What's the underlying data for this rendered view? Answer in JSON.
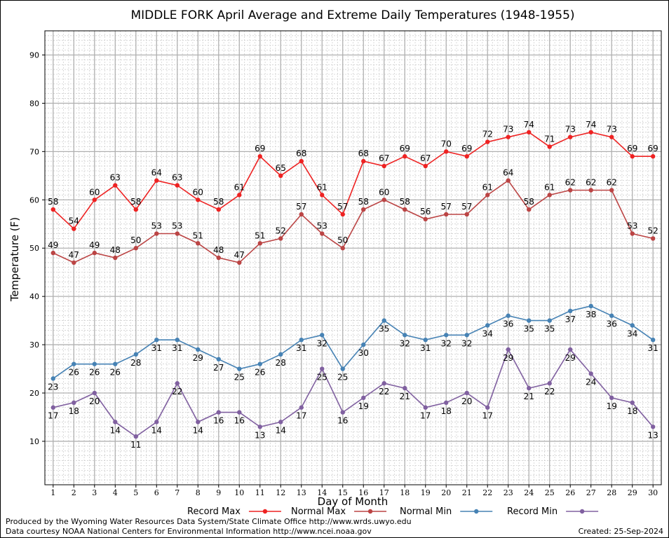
{
  "chart_data": {
    "type": "line",
    "title": "MIDDLE FORK April Average and Extreme Daily Temperatures (1948-1955)",
    "xlabel": "Day of Month",
    "ylabel": "Temperature (F)",
    "xlim": [
      0.6,
      30.4
    ],
    "ylim": [
      1,
      95
    ],
    "y_ticks": [
      10,
      20,
      30,
      40,
      50,
      60,
      70,
      80,
      90
    ],
    "x": [
      1,
      2,
      3,
      4,
      5,
      6,
      7,
      8,
      9,
      10,
      11,
      12,
      13,
      14,
      15,
      16,
      17,
      18,
      19,
      20,
      21,
      22,
      23,
      24,
      25,
      26,
      27,
      28,
      29,
      30
    ],
    "grid": true,
    "legend_placement": "bottom",
    "series": [
      {
        "name": "Record Max",
        "color": "#ee2222",
        "values": [
          58,
          54,
          60,
          63,
          58,
          64,
          63,
          60,
          58,
          61,
          69,
          65,
          68,
          61,
          57,
          68,
          67,
          69,
          67,
          70,
          69,
          72,
          73,
          74,
          71,
          73,
          74,
          73,
          69,
          69
        ]
      },
      {
        "name": "Normal Max",
        "color": "#bb4444",
        "values": [
          49,
          47,
          49,
          48,
          50,
          53,
          53,
          51,
          48,
          47,
          51,
          52,
          57,
          53,
          50,
          58,
          60,
          58,
          56,
          57,
          57,
          61,
          64,
          58,
          61,
          62,
          62,
          62,
          53,
          52
        ]
      },
      {
        "name": "Normal Min",
        "color": "#4682b4",
        "values": [
          23,
          26,
          26,
          26,
          28,
          31,
          31,
          29,
          27,
          25,
          26,
          28,
          31,
          32,
          25,
          30,
          35,
          32,
          31,
          32,
          32,
          34,
          36,
          35,
          35,
          37,
          38,
          36,
          34,
          31
        ]
      },
      {
        "name": "Record Min",
        "color": "#8060a0",
        "values": [
          17,
          18,
          20,
          14,
          11,
          14,
          22,
          14,
          16,
          16,
          13,
          14,
          17,
          25,
          16,
          19,
          22,
          21,
          17,
          18,
          20,
          17,
          29,
          21,
          22,
          29,
          24,
          19,
          18,
          13
        ]
      }
    ]
  },
  "footer": {
    "produced_by": "Produced by the Wyoming Water Resources Data System/State Climate Office http://www.wrds.uwyo.edu",
    "data_courtesy": "Data courtesy NOAA National Centers for Environmental Information http://www.ncei.noaa.gov",
    "created": "Created:  25-Sep-2024"
  }
}
